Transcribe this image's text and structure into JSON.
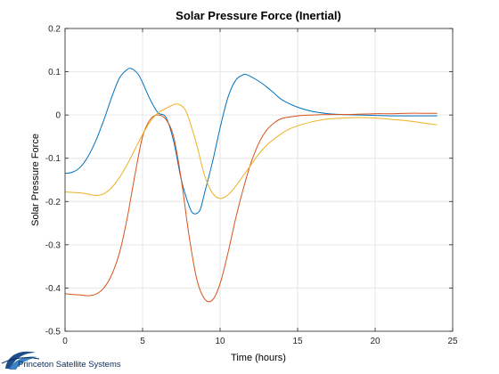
{
  "chart_data": {
    "type": "line",
    "title": "Solar Pressure Force (Inertial)",
    "xlabel": "Time (hours)",
    "ylabel": "Solar Pressure Force",
    "xlim": [
      0,
      25
    ],
    "ylim": [
      -0.5,
      0.2
    ],
    "xticks": [
      0,
      5,
      10,
      15,
      20,
      25
    ],
    "xtick_labels": [
      "0",
      "5",
      "10",
      "15",
      "20",
      "25"
    ],
    "yticks": [
      -0.5,
      -0.4,
      -0.3,
      -0.2,
      -0.1,
      0,
      0.1,
      0.2
    ],
    "ytick_labels": [
      "-0.5",
      "-0.4",
      "-0.3",
      "-0.2",
      "-0.1",
      "0",
      "0.1",
      "0.2"
    ],
    "grid": true,
    "legend": false,
    "series": [
      {
        "color": "#0072bd",
        "x": [
          0,
          0.5,
          1,
          1.5,
          2,
          2.5,
          3,
          3.5,
          4,
          4.3,
          4.7,
          5,
          5.5,
          6,
          6.5,
          7,
          7.5,
          8,
          8.3,
          8.7,
          9,
          9.5,
          10,
          10.5,
          11,
          11.5,
          11.8,
          12.5,
          13,
          13.5,
          14,
          15,
          16,
          17,
          18,
          19,
          20,
          21,
          22,
          23,
          24
        ],
        "y": [
          -0.135,
          -0.132,
          -0.12,
          -0.095,
          -0.058,
          -0.012,
          0.04,
          0.085,
          0.105,
          0.107,
          0.095,
          0.075,
          0.035,
          0.005,
          -0.005,
          -0.06,
          -0.15,
          -0.21,
          -0.228,
          -0.22,
          -0.18,
          -0.11,
          -0.03,
          0.04,
          0.08,
          0.093,
          0.092,
          0.078,
          0.065,
          0.05,
          0.035,
          0.018,
          0.008,
          0.003,
          0.001,
          0.0,
          -0.001,
          -0.002,
          -0.002,
          -0.002,
          -0.002
        ]
      },
      {
        "color": "#d95319",
        "x": [
          0,
          0.5,
          1,
          1.5,
          2,
          2.5,
          3,
          3.5,
          4,
          4.5,
          5,
          5.5,
          6,
          6.5,
          7,
          7.5,
          8,
          8.5,
          9,
          9.5,
          10,
          10.5,
          11,
          11.5,
          12,
          12.5,
          13,
          13.5,
          14,
          15,
          16,
          17,
          18,
          19,
          20,
          21,
          22,
          23,
          24
        ],
        "y": [
          -0.413,
          -0.415,
          -0.416,
          -0.418,
          -0.414,
          -0.4,
          -0.37,
          -0.32,
          -0.24,
          -0.14,
          -0.05,
          -0.01,
          0.0,
          -0.01,
          -0.05,
          -0.15,
          -0.28,
          -0.38,
          -0.425,
          -0.428,
          -0.39,
          -0.32,
          -0.24,
          -0.17,
          -0.11,
          -0.065,
          -0.035,
          -0.018,
          -0.008,
          -0.002,
          0.0,
          0.001,
          0.001,
          0.002,
          0.003,
          0.003,
          0.004,
          0.004,
          0.004
        ]
      },
      {
        "color": "#edb120",
        "x": [
          0,
          0.5,
          1,
          1.5,
          2,
          2.5,
          3,
          3.5,
          4,
          4.5,
          5,
          5.5,
          6,
          6.5,
          7,
          7.3,
          7.7,
          8,
          8.5,
          9,
          9.5,
          10,
          10.5,
          11,
          11.5,
          12,
          12.5,
          13,
          13.5,
          14,
          14.5,
          15,
          16,
          17,
          18,
          19,
          20,
          21,
          22,
          23,
          24
        ],
        "y": [
          -0.178,
          -0.179,
          -0.18,
          -0.183,
          -0.186,
          -0.182,
          -0.168,
          -0.145,
          -0.115,
          -0.08,
          -0.045,
          -0.015,
          0.005,
          0.015,
          0.024,
          0.025,
          0.015,
          -0.01,
          -0.07,
          -0.14,
          -0.18,
          -0.193,
          -0.185,
          -0.165,
          -0.14,
          -0.115,
          -0.09,
          -0.07,
          -0.055,
          -0.042,
          -0.032,
          -0.025,
          -0.015,
          -0.009,
          -0.007,
          -0.006,
          -0.007,
          -0.01,
          -0.013,
          -0.018,
          -0.023
        ]
      }
    ]
  },
  "footer": {
    "brand_name": "Princeton Satellite Systems",
    "logo_icon": "psi-swoosh-logo"
  }
}
